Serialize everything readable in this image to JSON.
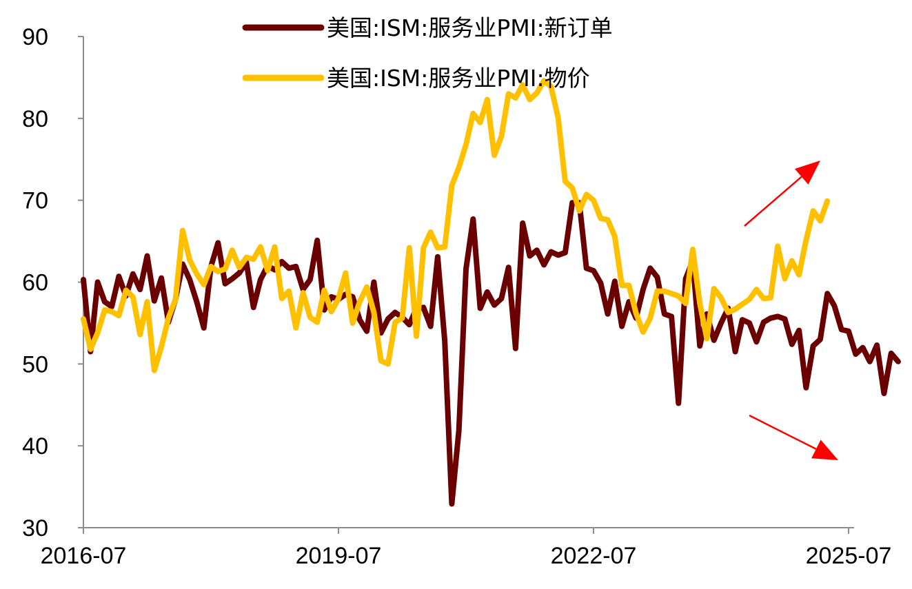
{
  "chart_data": {
    "type": "line",
    "title": "",
    "xlabel": "",
    "ylabel": "",
    "x_tick_labels": [
      "2016-07",
      "2019-07",
      "2022-07",
      "2025-07"
    ],
    "y_tick_labels": [
      "30",
      "40",
      "50",
      "60",
      "70",
      "80",
      "90"
    ],
    "ylim": [
      30,
      90
    ],
    "x_start": "2016-07",
    "x_end": "2025-07",
    "grid": false,
    "legend_position": "top",
    "annotations": [
      {
        "type": "arrow",
        "color": "#ff0000",
        "direction": "up-right",
        "near_series": "美国:ISM:服务业PMI:物价"
      },
      {
        "type": "arrow",
        "color": "#ff0000",
        "direction": "down-right",
        "near_series": "美国:ISM:服务业PMI:新订单"
      }
    ],
    "series": [
      {
        "name": "美国:ISM:服务业PMI:新订单",
        "color": "#6b0000",
        "values": [
          60.3,
          51.5,
          60.0,
          57.6,
          57.0,
          60.7,
          58.3,
          61.0,
          59.1,
          63.2,
          57.7,
          60.5,
          55.1,
          57.9,
          62.2,
          60.3,
          57.6,
          54.4,
          61.9,
          64.8,
          59.8,
          60.4,
          61.1,
          62.4,
          56.9,
          60.3,
          62.0,
          61.5,
          62.5,
          61.7,
          61.9,
          59.1,
          60.3,
          65.1,
          56.6,
          58.2,
          57.9,
          58.5,
          58.2,
          55.4,
          54.0,
          60.0,
          53.8,
          55.5,
          56.3,
          55.7,
          54.8,
          56.8,
          56.9,
          54.6,
          63.1,
          52.8,
          32.9,
          41.9,
          61.6,
          67.7,
          56.8,
          58.8,
          57.2,
          58.0,
          61.8,
          51.9,
          67.2,
          63.2,
          63.9,
          62.1,
          63.7,
          63.3,
          63.6,
          69.7,
          69.7,
          61.7,
          61.4,
          59.9,
          56.1,
          60.1,
          54.6,
          57.6,
          55.6,
          59.1,
          61.7,
          60.6,
          56.1,
          55.8,
          45.2,
          60.4,
          62.6,
          52.2,
          56.1,
          52.9,
          55.0,
          56.8,
          51.5,
          55.4,
          55.0,
          52.7,
          55.1,
          55.6,
          55.8,
          55.5,
          52.4,
          54.1,
          47.1,
          52.2,
          53.0,
          58.6,
          57.1,
          54.2,
          54.0,
          51.2,
          52.0,
          50.3,
          52.3,
          46.4,
          51.3,
          50.3
        ]
      },
      {
        "name": "美国:ISM:服务业PMI:物价",
        "color": "#ffc000",
        "values": [
          55.5,
          51.8,
          53.8,
          56.6,
          56.4,
          55.9,
          59.0,
          58.2,
          53.6,
          57.6,
          49.2,
          52.1,
          55.6,
          57.9,
          66.3,
          62.7,
          61.0,
          59.7,
          61.9,
          61.3,
          61.6,
          63.9,
          61.8,
          63.0,
          62.8,
          64.3,
          61.4,
          64.3,
          58.0,
          58.9,
          54.4,
          58.7,
          55.7,
          55.1,
          59.0,
          56.4,
          58.0,
          61.1,
          55.0,
          57.6,
          59.4,
          56.3,
          50.4,
          50.0,
          55.1,
          55.6,
          64.2,
          53.4,
          64.2,
          66.1,
          64.2,
          64.3,
          71.8,
          74.0,
          76.8,
          80.6,
          79.5,
          82.3,
          75.5,
          77.8,
          83.0,
          82.5,
          84.1,
          82.3,
          83.1,
          84.6,
          83.9,
          80.1,
          72.3,
          71.5,
          68.7,
          70.7,
          70.0,
          67.8,
          67.6,
          65.6,
          59.6,
          59.6,
          56.2,
          53.9,
          55.6,
          58.9,
          58.9,
          58.6,
          58.3,
          57.4,
          64.0,
          57.4,
          53.1,
          59.2,
          58.1,
          56.3,
          56.7,
          57.3,
          57.9,
          59.1,
          58.0,
          58.1,
          64.4,
          60.4,
          62.6,
          60.9,
          65.1,
          68.7,
          67.5,
          69.9
        ]
      }
    ]
  }
}
